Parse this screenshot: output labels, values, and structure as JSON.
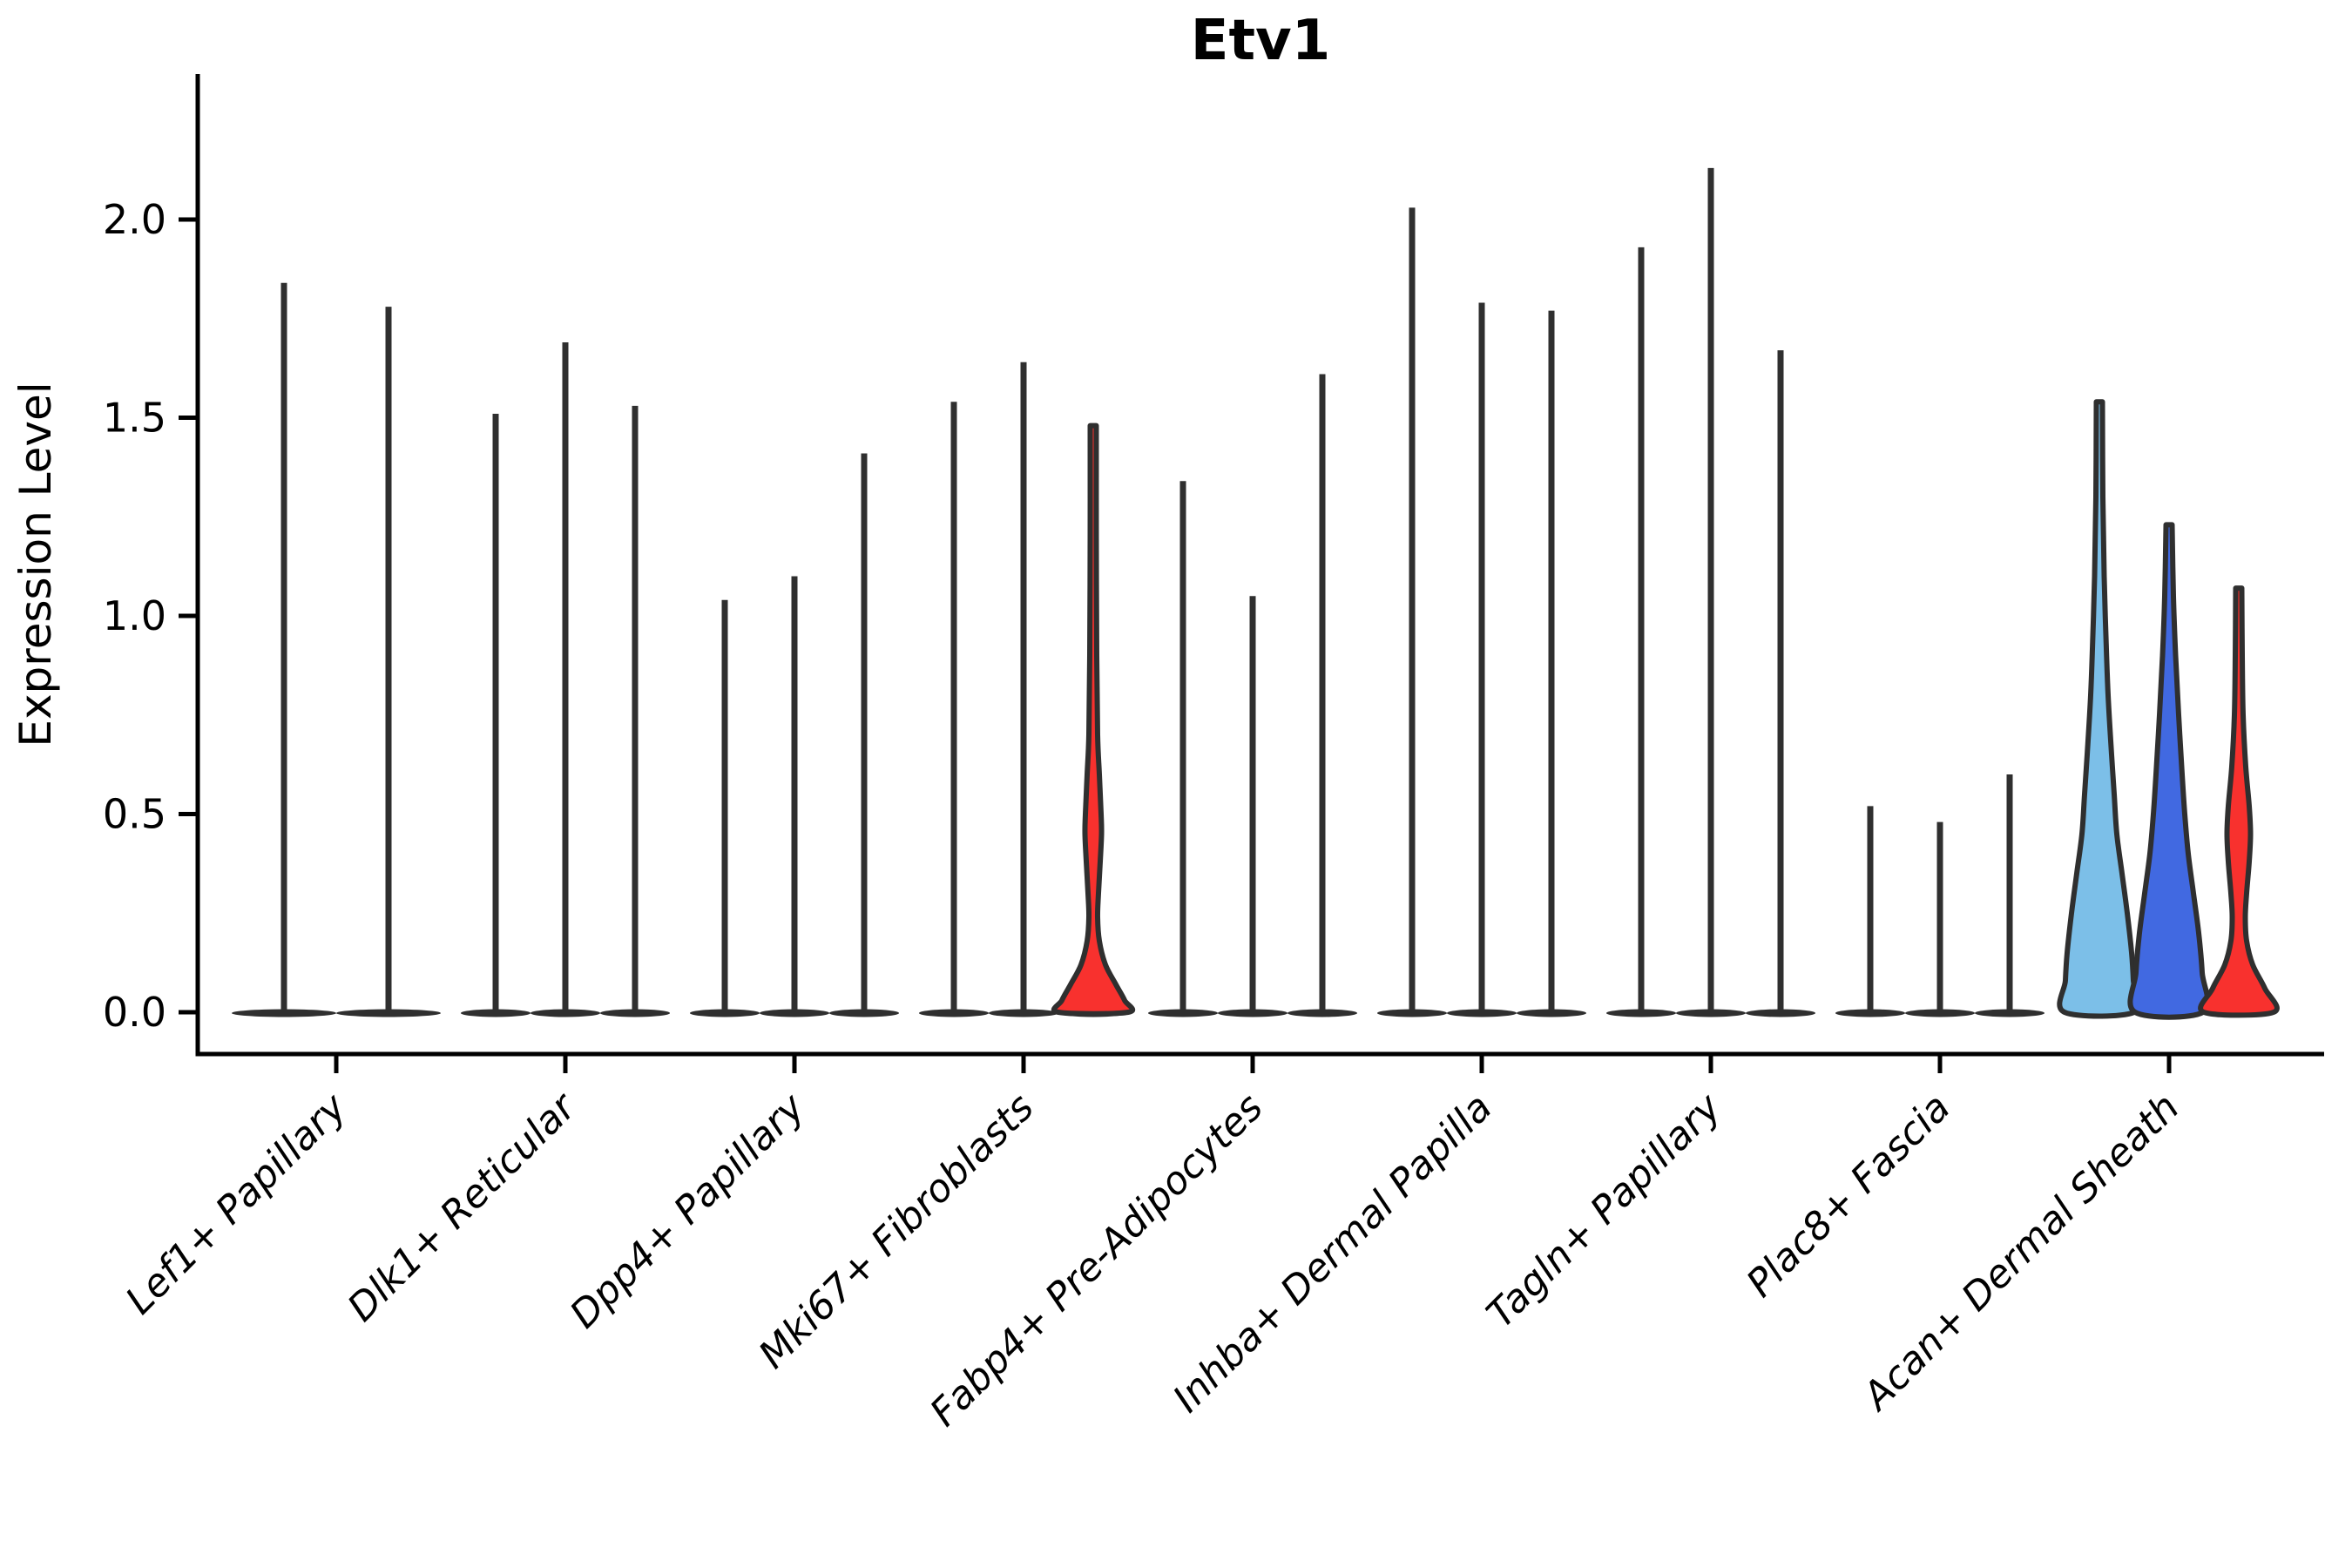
{
  "chart_data": {
    "type": "violin",
    "title": "Etv1",
    "ylabel": "Expression Level",
    "xlabel": "",
    "yticks": [
      0.0,
      0.5,
      1.0,
      1.5,
      2.0
    ],
    "ytick_labels": [
      "0.0",
      "0.5",
      "1.0",
      "1.5",
      "2.0"
    ],
    "ylim": [
      -0.11,
      2.37
    ],
    "grid": false,
    "legend": "none",
    "categories": [
      "Lef1+ Papillary",
      "Dlk1+ Reticular",
      "Dpp4+ Papillary",
      "Mki67+ Fibroblasts",
      "Fabp4+ Pre-Adipocytes",
      "Inhba+ Dermal Papilla",
      "Tagln+ Papillary",
      "Plac8+ Fascia",
      "Acan+ Dermal Sheath"
    ],
    "colors": {
      "outline": "#2F2F2F",
      "axis": "#000000",
      "fill_lightblue": "#7CBFE8",
      "fill_blue": "#4169E1",
      "fill_red": "#F8312E",
      "background": "#FFFFFF"
    },
    "groups": [
      {
        "category": "Lef1+ Papillary",
        "violins": [
          {
            "max_expression": 1.84,
            "fill": null
          },
          {
            "max_expression": 1.78,
            "fill": null
          }
        ]
      },
      {
        "category": "Dlk1+ Reticular",
        "violins": [
          {
            "max_expression": 1.51,
            "fill": null
          },
          {
            "max_expression": 1.69,
            "fill": null
          },
          {
            "max_expression": 1.53,
            "fill": null
          }
        ]
      },
      {
        "category": "Dpp4+ Papillary",
        "violins": [
          {
            "max_expression": 1.04,
            "fill": null
          },
          {
            "max_expression": 1.1,
            "fill": null
          },
          {
            "max_expression": 1.41,
            "fill": null
          }
        ]
      },
      {
        "category": "Mki67+ Fibroblasts",
        "violins": [
          {
            "max_expression": 1.54,
            "fill": null
          },
          {
            "max_expression": 1.64,
            "fill": null
          },
          {
            "max_expression": 1.48,
            "fill": "#F8312E",
            "profile": [
              [
                1.48,
                3.5
              ],
              [
                1.2,
                3.5
              ],
              [
                0.9,
                4.0
              ],
              [
                0.7,
                5.0
              ],
              [
                0.6,
                7.0
              ],
              [
                0.5,
                9.0
              ],
              [
                0.45,
                9.5
              ],
              [
                0.38,
                8.0
              ],
              [
                0.3,
                6.0
              ],
              [
                0.24,
                5.0
              ],
              [
                0.18,
                7.0
              ],
              [
                0.12,
                14.0
              ],
              [
                0.07,
                26.0
              ],
              [
                0.03,
                36.0
              ],
              [
                0.0,
                40.0
              ]
            ]
          }
        ]
      },
      {
        "category": "Fabp4+ Pre-Adipocytes",
        "violins": [
          {
            "max_expression": 1.34,
            "fill": null
          },
          {
            "max_expression": 1.05,
            "fill": null
          },
          {
            "max_expression": 1.61,
            "fill": null
          }
        ]
      },
      {
        "category": "Inhba+ Dermal Papilla",
        "violins": [
          {
            "max_expression": 2.03,
            "fill": null
          },
          {
            "max_expression": 1.79,
            "fill": null
          },
          {
            "max_expression": 1.77,
            "fill": null
          }
        ]
      },
      {
        "category": "Tagln+ Papillary",
        "violins": [
          {
            "max_expression": 1.93,
            "fill": null
          },
          {
            "max_expression": 2.13,
            "fill": null
          },
          {
            "max_expression": 1.67,
            "fill": null
          }
        ]
      },
      {
        "category": "Plac8+ Fascia",
        "violins": [
          {
            "max_expression": 0.52,
            "fill": null
          },
          {
            "max_expression": 0.48,
            "fill": null
          },
          {
            "max_expression": 0.6,
            "fill": null
          }
        ]
      },
      {
        "category": "Acan+ Dermal Sheath",
        "violins": [
          {
            "max_expression": 1.54,
            "fill": "#7CBFE8",
            "profile": [
              [
                1.54,
                3.5
              ],
              [
                1.3,
                4.0
              ],
              [
                1.1,
                5.5
              ],
              [
                0.95,
                7.5
              ],
              [
                0.8,
                10.0
              ],
              [
                0.65,
                14.0
              ],
              [
                0.55,
                17.0
              ],
              [
                0.45,
                20.0
              ],
              [
                0.35,
                26.0
              ],
              [
                0.25,
                32.0
              ],
              [
                0.15,
                37.0
              ],
              [
                0.08,
                39.0
              ],
              [
                0.0,
                40.0
              ]
            ]
          },
          {
            "max_expression": 1.23,
            "fill": "#4169E1",
            "profile": [
              [
                1.23,
                3.5
              ],
              [
                1.05,
                5.0
              ],
              [
                0.9,
                7.5
              ],
              [
                0.75,
                11.0
              ],
              [
                0.6,
                15.0
              ],
              [
                0.5,
                18.0
              ],
              [
                0.4,
                22.0
              ],
              [
                0.3,
                28.0
              ],
              [
                0.2,
                34.0
              ],
              [
                0.1,
                38.0
              ],
              [
                0.0,
                39.0
              ]
            ]
          },
          {
            "max_expression": 1.07,
            "fill": "#F8312E",
            "profile": [
              [
                1.07,
                3.5
              ],
              [
                0.9,
                4.0
              ],
              [
                0.75,
                5.0
              ],
              [
                0.62,
                8.0
              ],
              [
                0.52,
                12.0
              ],
              [
                0.45,
                13.5
              ],
              [
                0.38,
                12.0
              ],
              [
                0.3,
                9.0
              ],
              [
                0.24,
                7.5
              ],
              [
                0.18,
                9.0
              ],
              [
                0.12,
                16.0
              ],
              [
                0.06,
                30.0
              ],
              [
                0.0,
                40.0
              ]
            ]
          }
        ]
      }
    ]
  }
}
